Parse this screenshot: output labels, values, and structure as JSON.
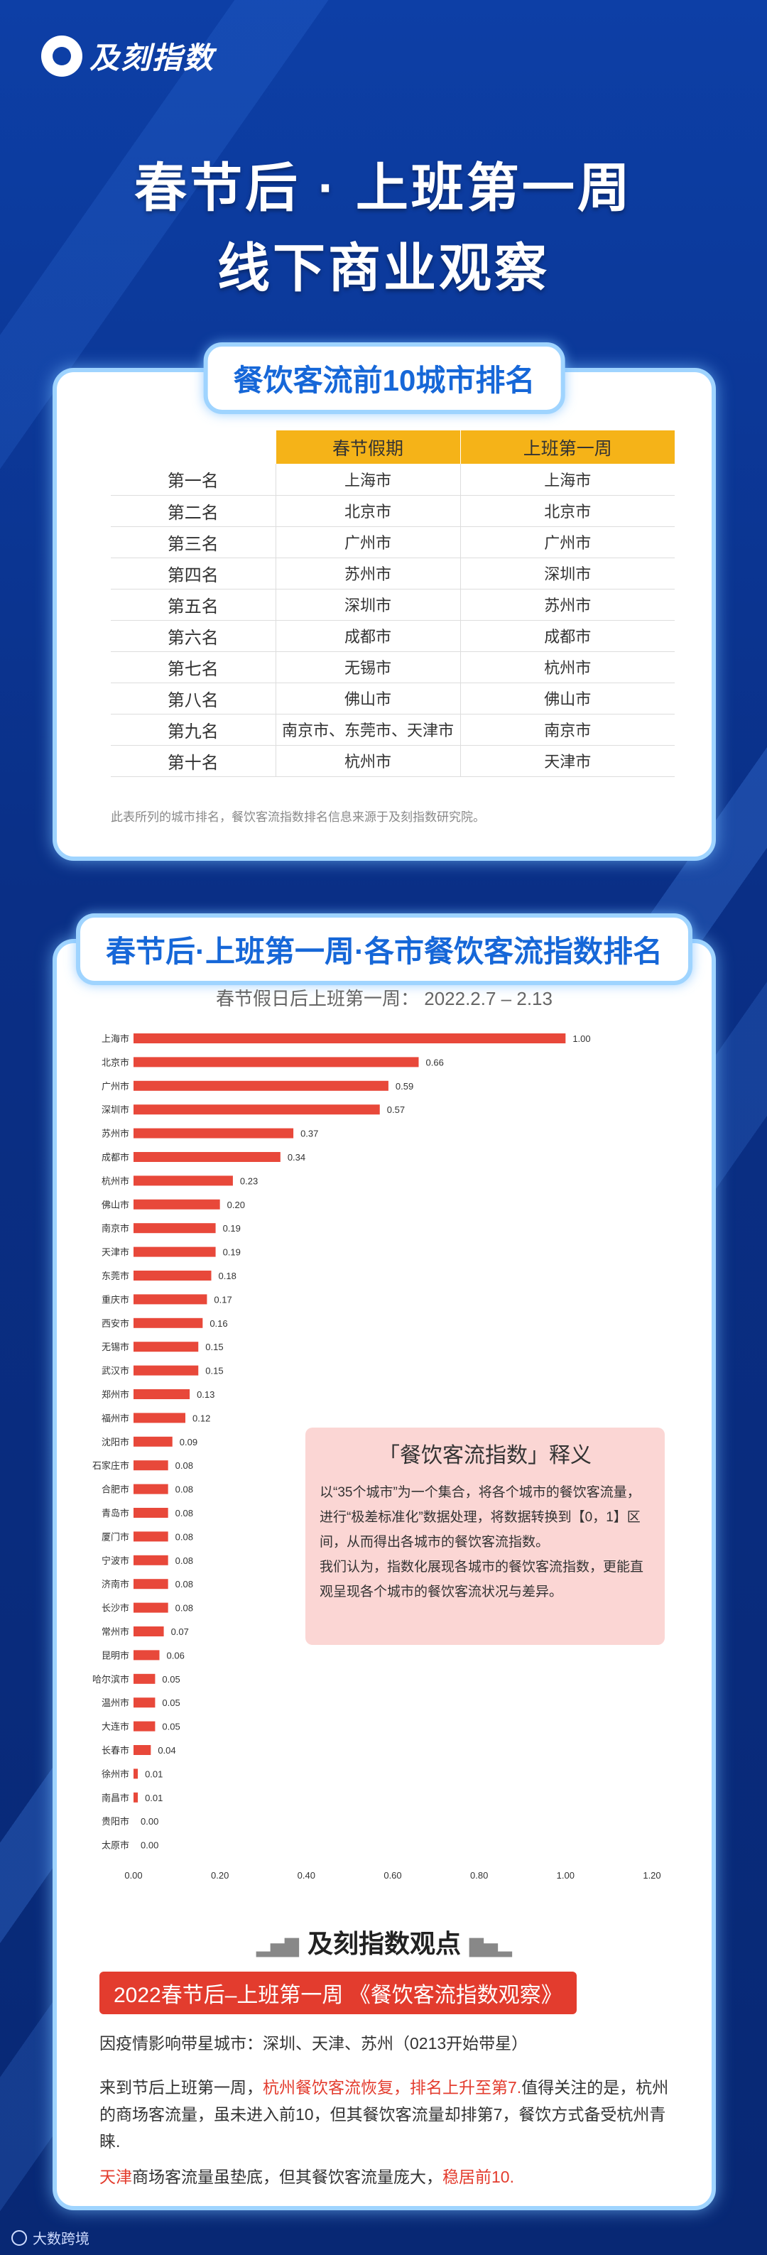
{
  "brand": {
    "name": "及刻指数"
  },
  "title": {
    "line1": "春节后 · 上班第一周",
    "line2": "线下商业观察"
  },
  "ranking": {
    "pill": "餐饮客流前10城市排名",
    "headers": [
      "",
      "春节假期",
      "上班第一周"
    ],
    "rows": [
      [
        "第一名",
        "上海市",
        "上海市"
      ],
      [
        "第二名",
        "北京市",
        "北京市"
      ],
      [
        "第三名",
        "广州市",
        "广州市"
      ],
      [
        "第四名",
        "苏州市",
        "深圳市"
      ],
      [
        "第五名",
        "深圳市",
        "苏州市"
      ],
      [
        "第六名",
        "成都市",
        "成都市"
      ],
      [
        "第七名",
        "无锡市",
        "杭州市"
      ],
      [
        "第八名",
        "佛山市",
        "佛山市"
      ],
      [
        "第九名",
        "南京市、东莞市、天津市",
        "南京市"
      ],
      [
        "第十名",
        "杭州市",
        "天津市"
      ]
    ],
    "note": "此表所列的城市排名，餐饮客流指数排名信息来源于及刻指数研究院。"
  },
  "index_section": {
    "pill": "春节后·上班第一周·各市餐饮客流指数排名",
    "chart_title": "春节假日后上班第一周：  2022.2.7 – 2.13"
  },
  "chart_data": {
    "type": "bar",
    "orientation": "horizontal",
    "categories": [
      "上海市",
      "北京市",
      "广州市",
      "深圳市",
      "苏州市",
      "成都市",
      "杭州市",
      "佛山市",
      "南京市",
      "天津市",
      "东莞市",
      "重庆市",
      "西安市",
      "无锡市",
      "武汉市",
      "郑州市",
      "福州市",
      "沈阳市",
      "石家庄市",
      "合肥市",
      "青岛市",
      "厦门市",
      "宁波市",
      "济南市",
      "长沙市",
      "常州市",
      "昆明市",
      "哈尔滨市",
      "温州市",
      "大连市",
      "长春市",
      "徐州市",
      "南昌市",
      "贵阳市",
      "太原市"
    ],
    "values": [
      1.0,
      0.66,
      0.59,
      0.57,
      0.37,
      0.34,
      0.23,
      0.2,
      0.19,
      0.19,
      0.18,
      0.17,
      0.16,
      0.15,
      0.15,
      0.13,
      0.12,
      0.09,
      0.08,
      0.08,
      0.08,
      0.08,
      0.08,
      0.08,
      0.08,
      0.07,
      0.06,
      0.05,
      0.05,
      0.05,
      0.04,
      0.01,
      0.01,
      0.0,
      0.0
    ],
    "labels": [
      "1.00",
      "0.66",
      "0.59",
      "0.57",
      "0.37",
      "0.34",
      "0.23",
      "0.20",
      "0.19",
      "0.19",
      "0.18",
      "0.17",
      "0.16",
      "0.15",
      "0.15",
      "0.13",
      "0.12",
      "0.09",
      "0.08",
      "0.08",
      "0.08",
      "0.08",
      "0.08",
      "0.08",
      "0.08",
      "0.07",
      "0.06",
      "0.05",
      "0.05",
      "0.05",
      "0.04",
      "0.01",
      "0.01",
      "0.00",
      "0.00"
    ],
    "xticks": [
      "0.00",
      "0.20",
      "0.40",
      "0.60",
      "0.80",
      "1.00",
      "1.20"
    ],
    "xlim": [
      0,
      1.2
    ],
    "bar_color": "#e8483a",
    "grid": false
  },
  "explain": {
    "title": "「餐饮客流指数」释义",
    "p1": "以“35个城市”为一个集合，将各个城市的餐饮客流量，进行“极差标准化”数据处理，将数据转换到【0，1】区间，从而得出各城市的餐饮客流指数。",
    "p2": "我们认为，指数化展现各城市的餐饮客流指数，更能直观呈现各个城市的餐饮客流状况与差异。"
  },
  "views": {
    "title": "及刻指数观点",
    "banner": "2022春节后–上班第一周 《餐饮客流指数观察》",
    "p1": "因疫情影响带星城市：深圳、天津、苏州（0213开始带星）",
    "p2_a": "来到节后上班第一周，",
    "p2_hl": "杭州餐饮客流恢复，排名上升至第7.",
    "p2_b": "值得关注的是，杭州的商场客流量，虽未进入前10，但其餐饮客流量却排第7，餐饮方式备受杭州青睐.",
    "p3_hl1": "天津",
    "p3_a": "商场客流量虽垫底，但其餐饮客流量庞大，",
    "p3_hl2": "稳居前10."
  },
  "footer": {
    "text": "大数跨境"
  }
}
